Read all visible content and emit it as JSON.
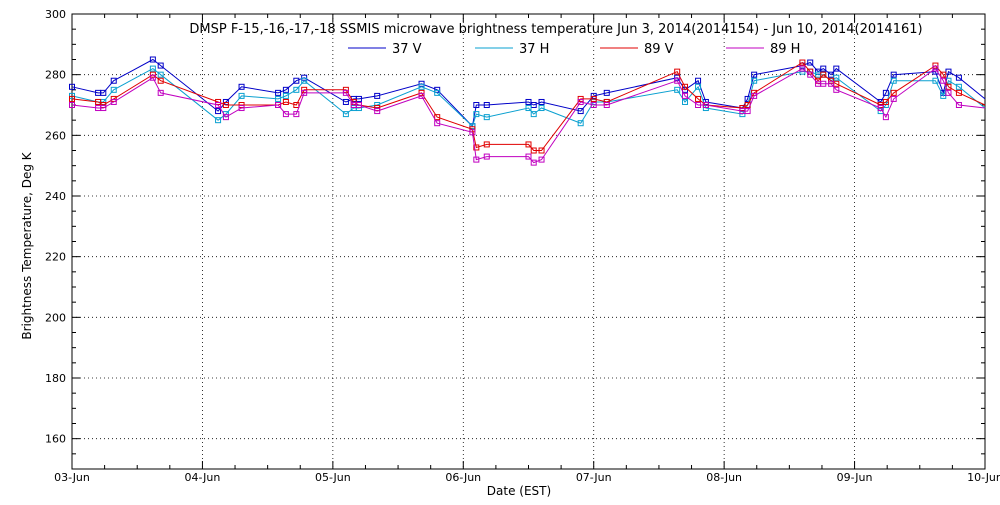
{
  "chart_data": {
    "type": "line",
    "title": "DMSP F-15,-16,-17,-18 SSMIS microwave brightness temperature Jun  3, 2014(2014154) - Jun 10, 2014(2014161)",
    "xlabel": "Date (EST)",
    "ylabel": "Brightness Temperature, Deg K",
    "ylim": [
      150,
      300
    ],
    "yticks": [
      160,
      180,
      200,
      220,
      240,
      260,
      280,
      300
    ],
    "xlim": [
      0,
      7
    ],
    "xtick_labels": [
      "03-Jun",
      "04-Jun",
      "05-Jun",
      "06-Jun",
      "07-Jun",
      "08-Jun",
      "09-Jun",
      "10-Jun"
    ],
    "x_unit": "days since 03-Jun 00:00",
    "grid": true,
    "legend_position": "top-center",
    "series": [
      {
        "name": "37 V",
        "color": "#0000c8",
        "x": [
          0.0,
          0.2,
          0.24,
          0.32,
          0.62,
          0.68,
          1.12,
          1.18,
          1.3,
          1.58,
          1.64,
          1.72,
          1.78,
          2.1,
          2.16,
          2.2,
          2.34,
          2.68,
          2.8,
          3.07,
          3.1,
          3.18,
          3.5,
          3.54,
          3.6,
          3.9,
          4.0,
          4.1,
          4.64,
          4.7,
          4.8,
          4.86,
          5.14,
          5.18,
          5.23,
          5.6,
          5.66,
          5.72,
          5.76,
          5.82,
          5.86,
          6.2,
          6.24,
          6.3,
          6.62,
          6.68,
          6.72,
          6.8,
          7.0
        ],
        "y": [
          276,
          274,
          274,
          278,
          285,
          283,
          268,
          271,
          276,
          274,
          275,
          278,
          279,
          271,
          272,
          272,
          273,
          277,
          275,
          263,
          270,
          270,
          271,
          270,
          271,
          268,
          273,
          274,
          279,
          275,
          278,
          271,
          269,
          272,
          280,
          283,
          284,
          281,
          282,
          280,
          282,
          271,
          274,
          280,
          281,
          274,
          281,
          279,
          272
        ]
      },
      {
        "name": "37 H",
        "color": "#0aa0d0",
        "x": [
          0.0,
          0.2,
          0.24,
          0.32,
          0.62,
          0.68,
          1.12,
          1.18,
          1.3,
          1.58,
          1.64,
          1.72,
          1.78,
          2.1,
          2.16,
          2.2,
          2.34,
          2.68,
          2.8,
          3.07,
          3.1,
          3.18,
          3.5,
          3.54,
          3.6,
          3.9,
          4.0,
          4.1,
          4.64,
          4.7,
          4.8,
          4.86,
          5.14,
          5.18,
          5.23,
          5.6,
          5.66,
          5.72,
          5.76,
          5.82,
          5.86,
          6.2,
          6.24,
          6.3,
          6.62,
          6.68,
          6.72,
          6.8,
          7.0
        ],
        "y": [
          273,
          271,
          271,
          275,
          282,
          280,
          265,
          267,
          273,
          272,
          273,
          275,
          278,
          267,
          269,
          269,
          270,
          276,
          274,
          263,
          267,
          266,
          269,
          267,
          269,
          264,
          271,
          271,
          275,
          271,
          276,
          269,
          267,
          270,
          278,
          281,
          281,
          280,
          280,
          278,
          279,
          268,
          270,
          278,
          278,
          273,
          278,
          276,
          269
        ]
      },
      {
        "name": "89 V",
        "color": "#e00000",
        "x": [
          0.0,
          0.2,
          0.24,
          0.32,
          0.62,
          0.68,
          1.12,
          1.18,
          1.3,
          1.58,
          1.64,
          1.72,
          1.78,
          2.1,
          2.16,
          2.2,
          2.34,
          2.68,
          2.8,
          3.07,
          3.1,
          3.18,
          3.5,
          3.54,
          3.6,
          3.9,
          4.0,
          4.1,
          4.64,
          4.7,
          4.8,
          4.86,
          5.14,
          5.18,
          5.23,
          5.6,
          5.66,
          5.72,
          5.76,
          5.82,
          5.86,
          6.2,
          6.24,
          6.3,
          6.62,
          6.68,
          6.72,
          6.8,
          7.0
        ],
        "y": [
          272,
          271,
          270,
          272,
          280,
          278,
          271,
          270,
          270,
          270,
          271,
          270,
          275,
          275,
          271,
          270,
          269,
          274,
          266,
          262,
          256,
          257,
          257,
          255,
          255,
          272,
          272,
          271,
          281,
          276,
          272,
          270,
          269,
          270,
          274,
          284,
          281,
          278,
          280,
          278,
          277,
          270,
          271,
          274,
          283,
          280,
          276,
          274,
          270
        ]
      },
      {
        "name": "89 H",
        "color": "#c000c0",
        "x": [
          0.0,
          0.2,
          0.24,
          0.32,
          0.62,
          0.68,
          1.12,
          1.18,
          1.3,
          1.58,
          1.64,
          1.72,
          1.78,
          2.1,
          2.16,
          2.2,
          2.34,
          2.68,
          2.8,
          3.07,
          3.1,
          3.18,
          3.5,
          3.54,
          3.6,
          3.9,
          4.0,
          4.1,
          4.64,
          4.7,
          4.8,
          4.86,
          5.14,
          5.18,
          5.23,
          5.6,
          5.66,
          5.72,
          5.76,
          5.82,
          5.86,
          6.2,
          6.24,
          6.3,
          6.62,
          6.68,
          6.72,
          6.8,
          7.0
        ],
        "y": [
          270,
          269,
          269,
          271,
          279,
          274,
          270,
          266,
          269,
          270,
          267,
          267,
          274,
          274,
          270,
          270,
          268,
          273,
          264,
          261,
          252,
          253,
          253,
          251,
          252,
          271,
          270,
          270,
          278,
          273,
          270,
          270,
          268,
          268,
          273,
          282,
          280,
          277,
          277,
          277,
          275,
          269,
          266,
          272,
          282,
          278,
          274,
          270,
          269
        ]
      }
    ]
  }
}
